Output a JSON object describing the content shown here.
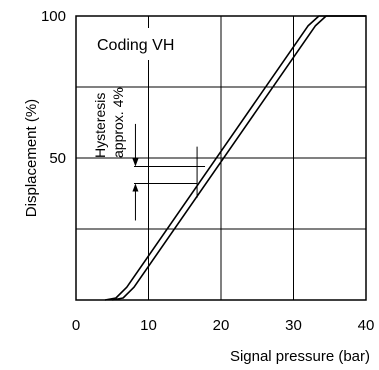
{
  "chart_data": {
    "type": "line",
    "title": "",
    "annotation": "Coding VH",
    "hysteresis_label_line1": "Hysteresis",
    "hysteresis_label_line2": "approx. 4%",
    "xlabel": "Signal pressure (bar)",
    "ylabel": "Displacement (%)",
    "xlim": [
      0,
      40
    ],
    "ylim": [
      0,
      100
    ],
    "xticks": [
      0,
      10,
      20,
      30,
      40
    ],
    "yticks": [
      50,
      100
    ],
    "grid": true,
    "grid_x": [
      10,
      20,
      30
    ],
    "grid_y": [
      25,
      50,
      75
    ],
    "series": [
      {
        "values": [
          {
            "x": 4.0,
            "y": 0
          },
          {
            "x": 5.5,
            "y": 0.7
          },
          {
            "x": 7.0,
            "y": 4.5
          },
          {
            "x": 32.0,
            "y": 96.5
          },
          {
            "x": 33.5,
            "y": 100
          },
          {
            "x": 40.0,
            "y": 100
          }
        ]
      },
      {
        "values": [
          {
            "x": 5.0,
            "y": 0
          },
          {
            "x": 6.5,
            "y": 0.7
          },
          {
            "x": 8.0,
            "y": 4.5
          },
          {
            "x": 33.0,
            "y": 96.5
          },
          {
            "x": 34.5,
            "y": 100
          },
          {
            "x": 40.0,
            "y": 100
          }
        ]
      }
    ]
  }
}
